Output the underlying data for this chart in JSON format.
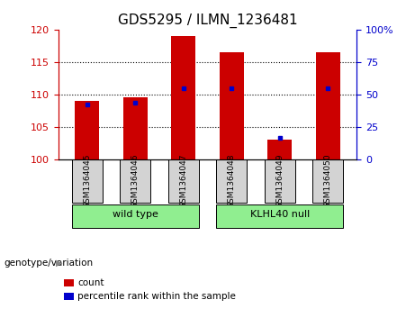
{
  "title": "GDS5295 / ILMN_1236481",
  "samples": [
    "GSM1364045",
    "GSM1364046",
    "GSM1364047",
    "GSM1364048",
    "GSM1364049",
    "GSM1364050"
  ],
  "group_info": [
    [
      "wild type",
      0,
      2
    ],
    [
      "KLHL40 null",
      3,
      5
    ]
  ],
  "count_values": [
    109.0,
    109.5,
    119.0,
    116.5,
    103.0,
    116.5
  ],
  "percentile_values": [
    42,
    44,
    55,
    55,
    17,
    55
  ],
  "ylim_left": [
    100,
    120
  ],
  "ylim_right": [
    0,
    100
  ],
  "yticks_left": [
    100,
    105,
    110,
    115,
    120
  ],
  "yticks_right": [
    0,
    25,
    50,
    75,
    100
  ],
  "bar_color": "#cc0000",
  "percentile_color": "#0000cc",
  "bar_width": 0.5,
  "background_color": "#ffffff",
  "grid_color": "#000000",
  "left_tick_color": "#cc0000",
  "right_tick_color": "#0000cc",
  "group_bg_color": "#90ee90",
  "sample_bg_color": "#d3d3d3",
  "genotype_label": "genotype/variation",
  "legend_count": "count",
  "legend_percentile": "percentile rank within the sample",
  "title_fontsize": 11,
  "tick_fontsize": 8,
  "sample_fontsize": 6.5,
  "group_fontsize": 8,
  "legend_fontsize": 7.5
}
